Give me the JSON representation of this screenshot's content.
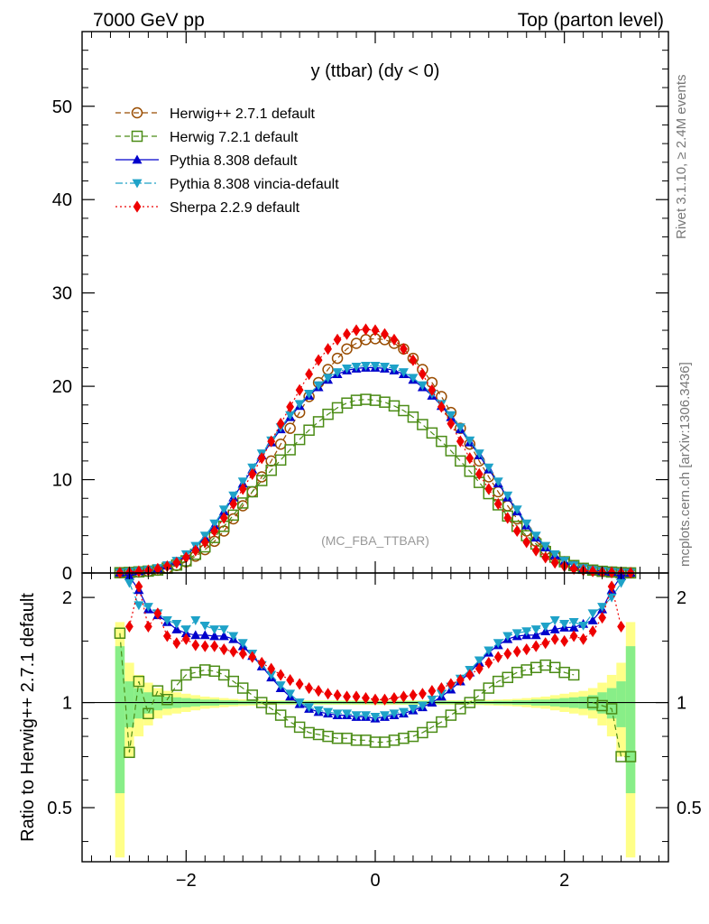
{
  "header": {
    "left": "7000 GeV pp",
    "right": "Top (parton level)"
  },
  "side_labels": {
    "rivet": "Rivet 3.1.10, ≥ 2.4M events",
    "mcplots": "mcplots.cern.ch [arXiv:1306.3436]"
  },
  "watermark": "(MC_FBA_TTBAR)",
  "ratio_ylabel": "Ratio to Herwig++ 2.7.1 default",
  "chart_data": [
    {
      "type": "line",
      "title": "y (ttbar) (dy < 0)",
      "xlim": [
        -3.1,
        3.1
      ],
      "ylim": [
        0,
        58
      ],
      "xticks": [
        -2,
        0,
        2
      ],
      "yticks": [
        0,
        10,
        20,
        30,
        40,
        50
      ],
      "grid": false,
      "legend_position": "top-left",
      "x": [
        -2.7,
        -2.6,
        -2.5,
        -2.4,
        -2.3,
        -2.2,
        -2.1,
        -2.0,
        -1.9,
        -1.8,
        -1.7,
        -1.6,
        -1.5,
        -1.4,
        -1.3,
        -1.2,
        -1.1,
        -1.0,
        -0.9,
        -0.8,
        -0.7,
        -0.6,
        -0.5,
        -0.4,
        -0.3,
        -0.2,
        -0.1,
        0.0,
        0.1,
        0.2,
        0.3,
        0.4,
        0.5,
        0.6,
        0.7,
        0.8,
        0.9,
        1.0,
        1.1,
        1.2,
        1.3,
        1.4,
        1.5,
        1.6,
        1.7,
        1.8,
        1.9,
        2.0,
        2.1,
        2.2,
        2.3,
        2.4,
        2.5,
        2.6,
        2.7
      ],
      "series": [
        {
          "name": "Herwig++ 2.7.1 default",
          "color": "#994c00",
          "marker": "circle-open",
          "dash": "6,4",
          "values": [
            0.02,
            0.05,
            0.1,
            0.18,
            0.3,
            0.5,
            0.8,
            1.2,
            1.8,
            2.5,
            3.4,
            4.5,
            5.8,
            7.2,
            8.7,
            10.3,
            12.0,
            13.8,
            15.5,
            17.2,
            18.9,
            20.4,
            21.8,
            23.0,
            24.0,
            24.6,
            25.0,
            25.1,
            25.0,
            24.6,
            24.0,
            23.0,
            21.8,
            20.4,
            18.9,
            17.2,
            15.5,
            13.8,
            12.0,
            10.3,
            8.7,
            7.2,
            5.8,
            4.5,
            3.4,
            2.5,
            1.8,
            1.2,
            0.8,
            0.5,
            0.3,
            0.18,
            0.1,
            0.05,
            0.02
          ]
        },
        {
          "name": "Herwig 7.2.1 default",
          "color": "#4b8c16",
          "marker": "square-open",
          "dash": "6,4",
          "values": [
            0.03,
            0.06,
            0.12,
            0.2,
            0.32,
            0.52,
            0.85,
            1.3,
            2.0,
            2.8,
            3.8,
            5.0,
            6.2,
            7.5,
            8.7,
            9.9,
            11.0,
            12.1,
            13.2,
            14.3,
            15.3,
            16.2,
            17.0,
            17.7,
            18.2,
            18.5,
            18.6,
            18.5,
            18.3,
            17.9,
            17.4,
            16.7,
            15.9,
            15.0,
            14.1,
            13.1,
            12.0,
            10.9,
            9.7,
            8.5,
            7.3,
            6.1,
            5.0,
            4.0,
            3.1,
            2.3,
            1.7,
            1.2,
            0.8,
            0.5,
            0.31,
            0.18,
            0.1,
            0.04,
            0.01
          ]
        },
        {
          "name": "Pythia 8.308 default",
          "color": "#0000cc",
          "marker": "triangle-up",
          "dash": "",
          "values": [
            0.05,
            0.13,
            0.2,
            0.32,
            0.5,
            0.8,
            1.25,
            1.9,
            2.75,
            3.8,
            5.1,
            6.6,
            8.1,
            9.6,
            11.1,
            12.6,
            14.0,
            15.4,
            16.7,
            17.9,
            19.0,
            19.9,
            20.7,
            21.3,
            21.7,
            21.9,
            22.0,
            22.0,
            21.9,
            21.7,
            21.3,
            20.7,
            19.9,
            19.0,
            17.9,
            16.7,
            15.4,
            14.0,
            12.6,
            11.1,
            9.6,
            8.1,
            6.6,
            5.1,
            3.8,
            2.75,
            1.9,
            1.25,
            0.8,
            0.5,
            0.32,
            0.2,
            0.12,
            0.05,
            0.03
          ]
        },
        {
          "name": "Pythia 8.308 vincia-default",
          "color": "#1ea2c8",
          "marker": "triangle-down",
          "dash": "8,3,2,3",
          "values": [
            0.05,
            0.12,
            0.2,
            0.32,
            0.52,
            0.82,
            1.3,
            2.0,
            2.9,
            4.0,
            5.3,
            6.8,
            8.3,
            9.8,
            11.3,
            12.8,
            14.2,
            15.6,
            16.9,
            18.1,
            19.2,
            20.1,
            20.9,
            21.5,
            21.9,
            22.1,
            22.2,
            22.2,
            22.1,
            21.9,
            21.5,
            20.9,
            20.1,
            19.2,
            18.1,
            16.9,
            15.6,
            14.2,
            12.8,
            11.3,
            9.8,
            8.3,
            6.8,
            5.3,
            4.0,
            2.9,
            2.0,
            1.3,
            0.82,
            0.52,
            0.32,
            0.2,
            0.12,
            0.05,
            0.03
          ]
        },
        {
          "name": "Sherpa 2.2.9 default",
          "color": "#ee0000",
          "marker": "diamond",
          "dash": "2,3",
          "values": [
            0.04,
            0.08,
            0.18,
            0.28,
            0.45,
            0.72,
            1.1,
            1.65,
            2.4,
            3.3,
            4.5,
            5.9,
            7.4,
            9.0,
            10.6,
            12.3,
            14.1,
            16.0,
            17.8,
            19.6,
            21.3,
            22.8,
            24.0,
            25.0,
            25.6,
            26.0,
            26.1,
            26.0,
            25.6,
            25.0,
            24.0,
            22.8,
            21.3,
            19.6,
            17.8,
            16.0,
            14.1,
            12.3,
            10.6,
            9.0,
            7.4,
            5.9,
            4.5,
            3.3,
            2.4,
            1.65,
            1.1,
            0.72,
            0.45,
            0.28,
            0.18,
            0.1,
            0.06,
            0.03,
            0.02
          ]
        }
      ]
    },
    {
      "type": "line",
      "title": "",
      "ylabel": "Ratio to Herwig++ 2.7.1 default",
      "xlim": [
        -3.1,
        3.1
      ],
      "ylim": [
        0.35,
        2.35
      ],
      "log_y": true,
      "xticks": [
        -2,
        0,
        2
      ],
      "xtick_labels": [
        "−2",
        "0",
        "2"
      ],
      "yticks": [
        0.5,
        1,
        2
      ],
      "x": [
        -2.7,
        -2.6,
        -2.5,
        -2.4,
        -2.3,
        -2.2,
        -2.1,
        -2.0,
        -1.9,
        -1.8,
        -1.7,
        -1.6,
        -1.5,
        -1.4,
        -1.3,
        -1.2,
        -1.1,
        -1.0,
        -0.9,
        -0.8,
        -0.7,
        -0.6,
        -0.5,
        -0.4,
        -0.3,
        -0.2,
        -0.1,
        0.0,
        0.1,
        0.2,
        0.3,
        0.4,
        0.5,
        0.6,
        0.7,
        0.8,
        0.9,
        1.0,
        1.1,
        1.2,
        1.3,
        1.4,
        1.5,
        1.6,
        1.7,
        1.8,
        1.9,
        2.0,
        2.1,
        2.2,
        2.3,
        2.4,
        2.5,
        2.6,
        2.7
      ],
      "band_inner": [
        0.45,
        0.15,
        0.1,
        0.07,
        0.05,
        0.04,
        0.035,
        0.03,
        0.025,
        0.02,
        0.02,
        0.015,
        0.015,
        0.012,
        0.012,
        0.01,
        0.01,
        0.01,
        0.01,
        0.01,
        0.01,
        0.01,
        0.01,
        0.01,
        0.01,
        0.01,
        0.01,
        0.01,
        0.01,
        0.01,
        0.01,
        0.01,
        0.01,
        0.01,
        0.01,
        0.01,
        0.01,
        0.01,
        0.01,
        0.01,
        0.012,
        0.012,
        0.015,
        0.015,
        0.02,
        0.02,
        0.025,
        0.03,
        0.035,
        0.04,
        0.05,
        0.07,
        0.1,
        0.15,
        0.45
      ],
      "band_outer": [
        0.7,
        0.3,
        0.2,
        0.14,
        0.1,
        0.08,
        0.07,
        0.06,
        0.05,
        0.04,
        0.035,
        0.03,
        0.025,
        0.022,
        0.02,
        0.018,
        0.016,
        0.015,
        0.015,
        0.015,
        0.015,
        0.015,
        0.015,
        0.015,
        0.015,
        0.015,
        0.015,
        0.015,
        0.015,
        0.015,
        0.015,
        0.015,
        0.015,
        0.015,
        0.015,
        0.015,
        0.015,
        0.015,
        0.016,
        0.018,
        0.02,
        0.022,
        0.025,
        0.03,
        0.035,
        0.04,
        0.05,
        0.06,
        0.07,
        0.08,
        0.1,
        0.14,
        0.2,
        0.3,
        0.7
      ],
      "series": [
        {
          "name": "Herwig 7.2.1 default",
          "color": "#4b8c16",
          "marker": "square-open",
          "dash": "6,4",
          "values": [
            1.58,
            0.72,
            1.15,
            0.93,
            1.08,
            1.02,
            1.12,
            1.2,
            1.22,
            1.24,
            1.23,
            1.2,
            1.15,
            1.1,
            1.05,
            1.0,
            0.96,
            0.92,
            0.88,
            0.85,
            0.82,
            0.81,
            0.8,
            0.79,
            0.79,
            0.78,
            0.78,
            0.77,
            0.77,
            0.78,
            0.79,
            0.8,
            0.82,
            0.85,
            0.88,
            0.92,
            0.96,
            1.0,
            1.05,
            1.1,
            1.15,
            1.18,
            1.22,
            1.24,
            1.26,
            1.28,
            1.26,
            1.22,
            1.2,
            null,
            1.0,
            0.98,
            0.96,
            0.7,
            0.7
          ]
        },
        {
          "name": "Pythia 8.308 default",
          "color": "#0000cc",
          "marker": "triangle-up",
          "dash": "",
          "values": [
            null,
            2.3,
            2.1,
            1.85,
            1.78,
            1.7,
            1.62,
            1.58,
            1.56,
            1.56,
            1.55,
            1.55,
            1.52,
            1.45,
            1.36,
            1.27,
            1.18,
            1.1,
            1.04,
            0.99,
            0.96,
            0.94,
            0.93,
            0.92,
            0.92,
            0.91,
            0.91,
            0.9,
            0.91,
            0.92,
            0.93,
            0.95,
            0.97,
            1.0,
            1.04,
            1.09,
            1.15,
            1.22,
            1.3,
            1.39,
            1.46,
            1.52,
            1.55,
            1.56,
            1.56,
            1.6,
            1.62,
            1.64,
            1.64,
            1.68,
            1.72,
            1.85,
            2.1,
            2.3,
            null
          ]
        },
        {
          "name": "Pythia 8.308 vincia-default",
          "color": "#1ea2c8",
          "marker": "triangle-down",
          "dash": "8,3,2,3",
          "values": [
            null,
            2.2,
            1.9,
            1.88,
            1.8,
            1.72,
            1.68,
            1.62,
            1.72,
            1.66,
            1.62,
            1.62,
            1.55,
            1.48,
            1.38,
            1.28,
            1.2,
            1.12,
            1.06,
            1.0,
            0.97,
            0.95,
            0.94,
            0.93,
            0.93,
            0.92,
            0.92,
            0.91,
            0.92,
            0.93,
            0.94,
            0.96,
            0.98,
            1.02,
            1.06,
            1.11,
            1.17,
            1.24,
            1.32,
            1.41,
            1.48,
            1.55,
            1.58,
            1.6,
            1.62,
            1.65,
            1.72,
            1.68,
            1.7,
            1.66,
            1.8,
            1.88,
            2.0,
            2.2,
            null
          ]
        },
        {
          "name": "Sherpa 2.2.9 default",
          "color": "#ee0000",
          "marker": "diamond",
          "dash": "2,3",
          "values": [
            null,
            1.65,
            2.15,
            1.65,
            1.8,
            1.55,
            1.48,
            1.52,
            1.46,
            1.45,
            1.45,
            1.42,
            1.4,
            1.38,
            1.35,
            1.3,
            1.25,
            1.2,
            1.16,
            1.13,
            1.1,
            1.08,
            1.06,
            1.05,
            1.04,
            1.04,
            1.03,
            1.02,
            1.02,
            1.03,
            1.04,
            1.05,
            1.06,
            1.08,
            1.1,
            1.13,
            1.16,
            1.2,
            1.25,
            1.3,
            1.35,
            1.38,
            1.4,
            1.42,
            1.45,
            1.48,
            1.52,
            1.5,
            1.55,
            1.52,
            1.6,
            1.75,
            2.15,
            1.65,
            null
          ]
        }
      ]
    }
  ]
}
